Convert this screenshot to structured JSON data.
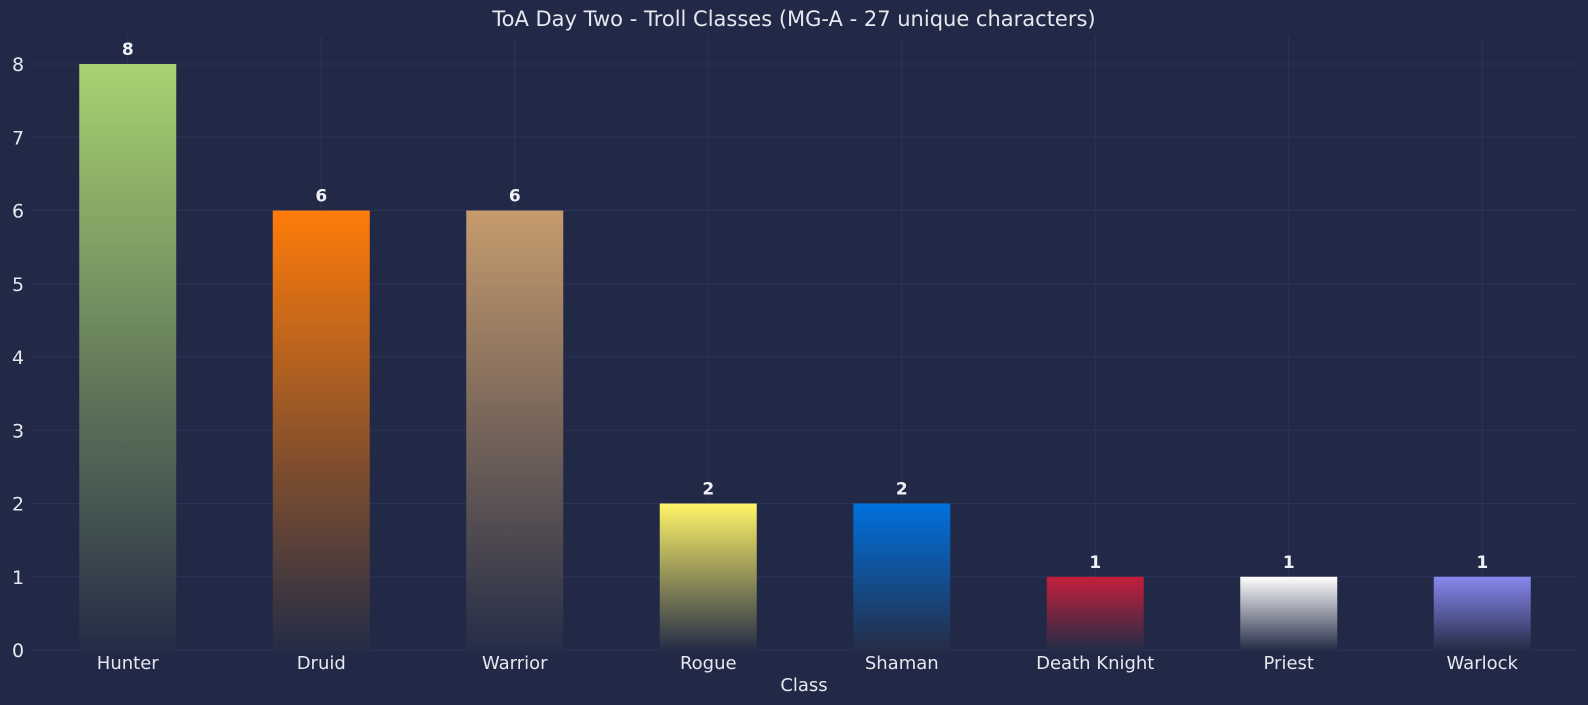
{
  "chart_data": {
    "type": "bar",
    "title": "ToA Day Two - Troll Classes (MG-A - 27 unique characters)",
    "xlabel": "Class",
    "ylabel": "",
    "categories": [
      "Hunter",
      "Druid",
      "Warrior",
      "Rogue",
      "Shaman",
      "Death Knight",
      "Priest",
      "Warlock"
    ],
    "values": [
      8,
      6,
      6,
      2,
      2,
      1,
      1,
      1
    ],
    "colors": [
      "#A9D271",
      "#FF7C0A",
      "#C69B6D",
      "#FFF468",
      "#0070DD",
      "#C41E3A",
      "#FFFFFF",
      "#8788EE"
    ],
    "ylim": [
      0,
      8.3
    ],
    "yticks": [
      0,
      1,
      2,
      3,
      4,
      5,
      6,
      7,
      8
    ],
    "grid": true,
    "background": "#212946",
    "gridColor": "#2a3459"
  }
}
